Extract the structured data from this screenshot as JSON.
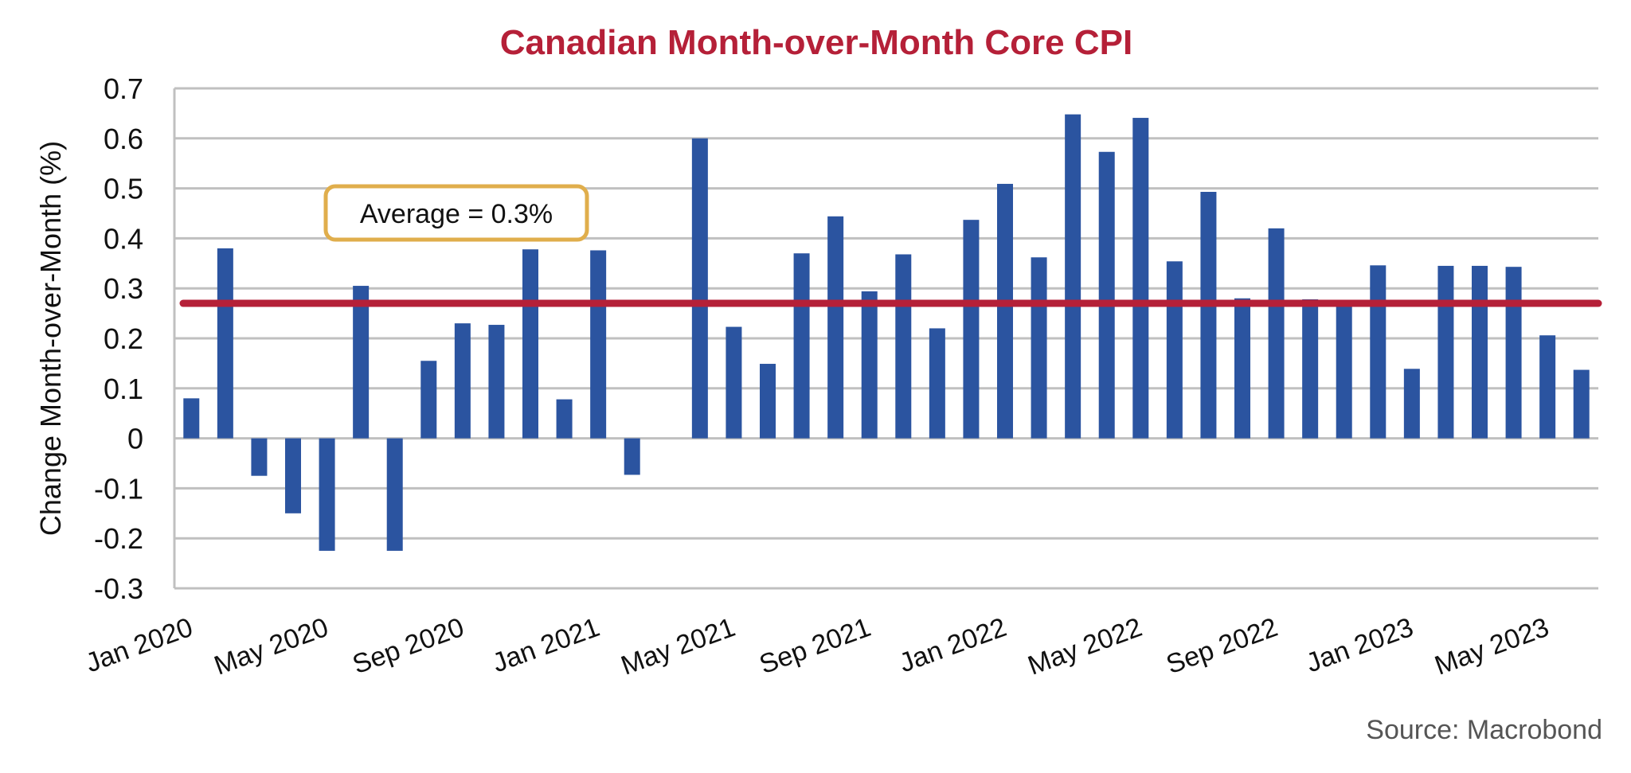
{
  "chart_data": {
    "type": "bar",
    "title": "Canadian Month-over-Month Core CPI",
    "xlabel": "",
    "ylabel": "Change Month-over-Month (%)",
    "ylim": [
      -0.3,
      0.7
    ],
    "yticks": [
      "0.7",
      "0.6",
      "0.5",
      "0.4",
      "0.3",
      "0.2",
      "0.1",
      "0",
      "-0.1",
      "-0.2",
      "-0.3"
    ],
    "ytick_values": [
      0.7,
      0.6,
      0.5,
      0.4,
      0.3,
      0.2,
      0.1,
      0,
      -0.1,
      -0.2,
      -0.3
    ],
    "grid": true,
    "categories": [
      "Jan 2020",
      "Feb 2020",
      "Mar 2020",
      "Apr 2020",
      "May 2020",
      "Jun 2020",
      "Jul 2020",
      "Aug 2020",
      "Sep 2020",
      "Oct 2020",
      "Nov 2020",
      "Dec 2020",
      "Jan 2021",
      "Feb 2021",
      "Mar 2021",
      "Apr 2021",
      "May 2021",
      "Jun 2021",
      "Jul 2021",
      "Aug 2021",
      "Sep 2021",
      "Oct 2021",
      "Nov 2021",
      "Dec 2021",
      "Jan 2022",
      "Feb 2022",
      "Mar 2022",
      "Apr 2022",
      "May 2022",
      "Jun 2022",
      "Jul 2022",
      "Aug 2022",
      "Sep 2022",
      "Oct 2022",
      "Nov 2022",
      "Dec 2022",
      "Jan 2023",
      "Feb 2023",
      "Mar 2023",
      "Apr 2023",
      "May 2023",
      "Jun 2023"
    ],
    "xtick_labels": [
      "Jan 2020",
      "May 2020",
      "Sep 2020",
      "Jan 2021",
      "May 2021",
      "Sep 2021",
      "Jan 2022",
      "May 2022",
      "Sep 2022",
      "Jan 2023",
      "May 2023"
    ],
    "values": [
      0.08,
      0.38,
      -0.075,
      -0.15,
      -0.225,
      0.305,
      -0.225,
      0.155,
      0.23,
      0.227,
      0.378,
      0.078,
      0.376,
      -0.073,
      0,
      0.6,
      0.223,
      0.149,
      0.37,
      0.444,
      0.294,
      0.368,
      0.22,
      0.437,
      0.509,
      0.362,
      0.648,
      0.573,
      0.641,
      0.354,
      0.493,
      0.28,
      0.42,
      0.278,
      0.277,
      0.346,
      0.139,
      0.345,
      0.345,
      0.343,
      0.206,
      0.137
    ],
    "average_line": 0.27,
    "annotation": "Average = 0.3%",
    "source": "Source: Macrobond",
    "colors": {
      "bars": "#2b54a0",
      "average_line": "#b52038",
      "annotation_border": "#e0ae4c",
      "title": "#b52038",
      "grid": "#c0c0c0"
    }
  }
}
